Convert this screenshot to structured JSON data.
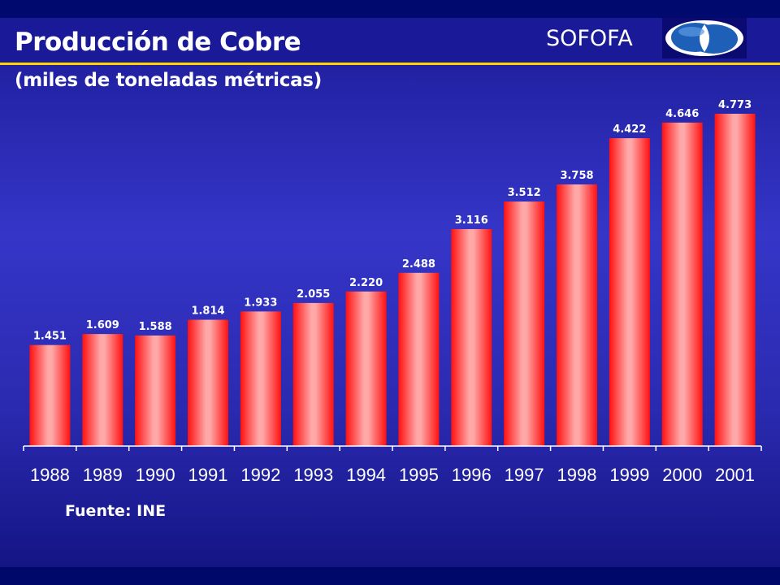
{
  "header": {
    "title": "Producción de Cobre",
    "subtitle": "(miles de toneladas métricas)",
    "brand": "SOFOFA"
  },
  "logo": {
    "icon": "sofofa-logo-icon"
  },
  "footer": {
    "source": "Fuente: INE"
  },
  "colors": {
    "accent_rule": "#ffd400",
    "bar_center": "#ffa8a8",
    "bar_edge": "#ff1010",
    "axis": "#ffffff",
    "text": "#ffffff"
  },
  "chart_data": {
    "type": "bar",
    "title": "Producción de Cobre",
    "subtitle": "(miles de toneladas métricas)",
    "categories": [
      "1988",
      "1989",
      "1990",
      "1991",
      "1992",
      "1993",
      "1994",
      "1995",
      "1996",
      "1997",
      "1998",
      "1999",
      "2000",
      "2001"
    ],
    "values": [
      1451,
      1609,
      1588,
      1814,
      1933,
      2055,
      2220,
      2488,
      3116,
      3512,
      3758,
      4422,
      4646,
      4773
    ],
    "data_labels": [
      "1.451",
      "1.609",
      "1.588",
      "1.814",
      "1.933",
      "2.055",
      "2.220",
      "2.488",
      "3.116",
      "3.512",
      "3.758",
      "4.422",
      "4.646",
      "4.773"
    ],
    "ylim": [
      0,
      4773
    ],
    "grid": false,
    "legend": "none",
    "xlabel": "",
    "ylabel": ""
  }
}
